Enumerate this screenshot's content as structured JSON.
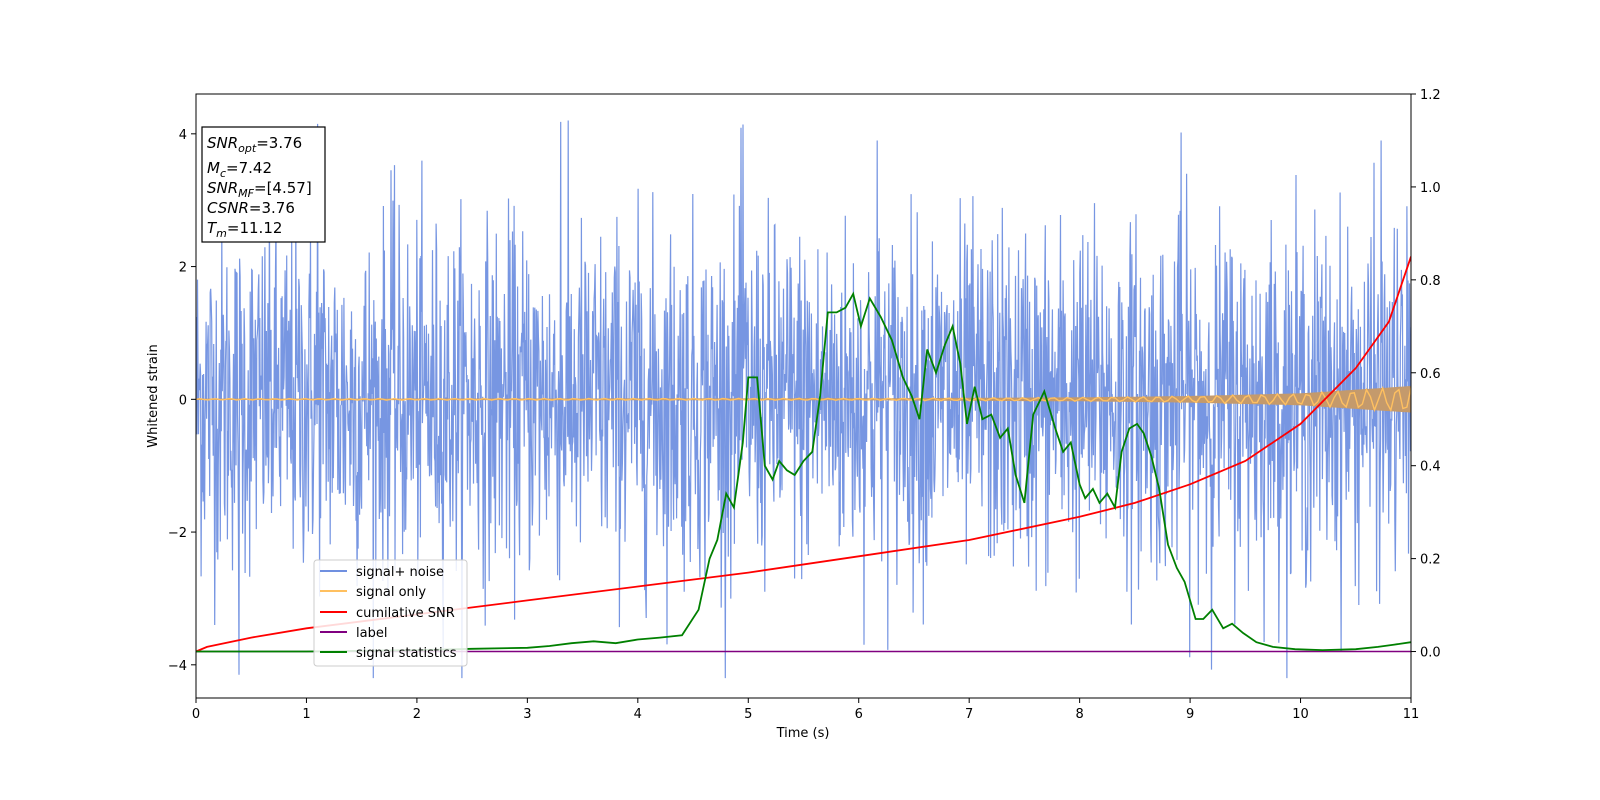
{
  "chart_data": {
    "type": "line",
    "xlabel": "Time (s)",
    "ylabel": "Whitened strain",
    "xlim": [
      0,
      11
    ],
    "ylim": [
      -4.5,
      4.6
    ],
    "y2lim": [
      -0.1,
      1.2
    ],
    "x_ticks": [
      "0",
      "1",
      "2",
      "3",
      "4",
      "5",
      "6",
      "7",
      "8",
      "9",
      "10",
      "11"
    ],
    "y_ticks": [
      "−4",
      "−2",
      "0",
      "2",
      "4"
    ],
    "y2_ticks": [
      "0.0",
      "0.2",
      "0.4",
      "0.6",
      "0.8",
      "1.0",
      "1.2"
    ],
    "annotation": {
      "snr_opt": {
        "base": "SNR",
        "sub": "opt",
        "value": "=3.76"
      },
      "mc": {
        "base": "M",
        "sub": "c",
        "value": "=7.42"
      },
      "snr_mf": {
        "base": "SNR",
        "sub": "MF",
        "value": "=[4.57]"
      },
      "csnr": {
        "base": "CSNR",
        "value": "=3.76"
      },
      "tm": {
        "base": "T",
        "sub": "m",
        "value": "=11.12"
      }
    },
    "legend": {
      "position": "lower-left",
      "entries": [
        {
          "label": "signal+ noise",
          "color": "#7090e0"
        },
        {
          "label": "signal only",
          "color": "#ffc060"
        },
        {
          "label": "cumilative SNR",
          "color": "#ff0000"
        },
        {
          "label": "label",
          "color": "#800080"
        },
        {
          "label": "signal statistics",
          "color": "#008000"
        }
      ]
    },
    "series": [
      {
        "name": "signal+ noise",
        "axis": "left",
        "color": "#7090e0",
        "description_values": {
          "typical_amplitude": 1.8,
          "peak_values": [
            4.15,
            4.18,
            4.14,
            4.02,
            -4.15,
            -3.95
          ]
        }
      },
      {
        "name": "signal only",
        "axis": "left",
        "color": "#ffc060",
        "envelope": {
          "x": [
            0,
            6,
            8,
            9,
            10,
            11
          ],
          "amp": [
            0.01,
            0.015,
            0.03,
            0.05,
            0.09,
            0.2
          ]
        }
      },
      {
        "name": "cumilative SNR",
        "axis": "right",
        "color": "#ff0000",
        "x": [
          0,
          0.1,
          0.5,
          1,
          2,
          3,
          4,
          5,
          6,
          7,
          8,
          8.5,
          9,
          9.5,
          10,
          10.5,
          10.8,
          11
        ],
        "y": [
          0.0,
          0.01,
          0.03,
          0.05,
          0.08,
          0.11,
          0.14,
          0.17,
          0.205,
          0.24,
          0.29,
          0.32,
          0.36,
          0.41,
          0.49,
          0.61,
          0.71,
          0.85
        ]
      },
      {
        "name": "label",
        "axis": "right",
        "color": "#800080",
        "x": [
          0,
          11
        ],
        "y": [
          0,
          0
        ]
      },
      {
        "name": "signal statistics",
        "axis": "right",
        "color": "#008000",
        "x": [
          0,
          1,
          2,
          2.5,
          3,
          3.2,
          3.4,
          3.6,
          3.8,
          4.0,
          4.2,
          4.4,
          4.55,
          4.65,
          4.72,
          4.8,
          4.87,
          4.95,
          5.0,
          5.08,
          5.15,
          5.22,
          5.28,
          5.35,
          5.42,
          5.5,
          5.58,
          5.65,
          5.72,
          5.8,
          5.88,
          5.95,
          6.02,
          6.1,
          6.2,
          6.3,
          6.4,
          6.48,
          6.55,
          6.62,
          6.7,
          6.78,
          6.85,
          6.92,
          6.98,
          7.05,
          7.12,
          7.2,
          7.28,
          7.35,
          7.42,
          7.5,
          7.58,
          7.68,
          7.78,
          7.85,
          7.92,
          8.0,
          8.05,
          8.12,
          8.18,
          8.25,
          8.32,
          8.38,
          8.45,
          8.52,
          8.58,
          8.65,
          8.72,
          8.8,
          8.88,
          8.95,
          9.05,
          9.12,
          9.2,
          9.3,
          9.38,
          9.48,
          9.6,
          9.75,
          9.95,
          10.2,
          10.5,
          10.7,
          10.85,
          11.0
        ],
        "y": [
          0.0,
          0.0,
          0.003,
          0.006,
          0.008,
          0.012,
          0.018,
          0.022,
          0.018,
          0.026,
          0.03,
          0.035,
          0.09,
          0.2,
          0.24,
          0.34,
          0.31,
          0.45,
          0.59,
          0.59,
          0.4,
          0.37,
          0.41,
          0.39,
          0.38,
          0.41,
          0.43,
          0.55,
          0.73,
          0.73,
          0.74,
          0.77,
          0.7,
          0.76,
          0.72,
          0.67,
          0.59,
          0.55,
          0.5,
          0.65,
          0.6,
          0.66,
          0.7,
          0.62,
          0.49,
          0.57,
          0.5,
          0.51,
          0.46,
          0.48,
          0.38,
          0.32,
          0.51,
          0.56,
          0.48,
          0.43,
          0.45,
          0.36,
          0.33,
          0.35,
          0.32,
          0.34,
          0.31,
          0.43,
          0.48,
          0.49,
          0.47,
          0.42,
          0.35,
          0.23,
          0.18,
          0.15,
          0.07,
          0.07,
          0.09,
          0.05,
          0.06,
          0.04,
          0.02,
          0.01,
          0.005,
          0.003,
          0.005,
          0.01,
          0.015,
          0.02
        ]
      }
    ]
  }
}
